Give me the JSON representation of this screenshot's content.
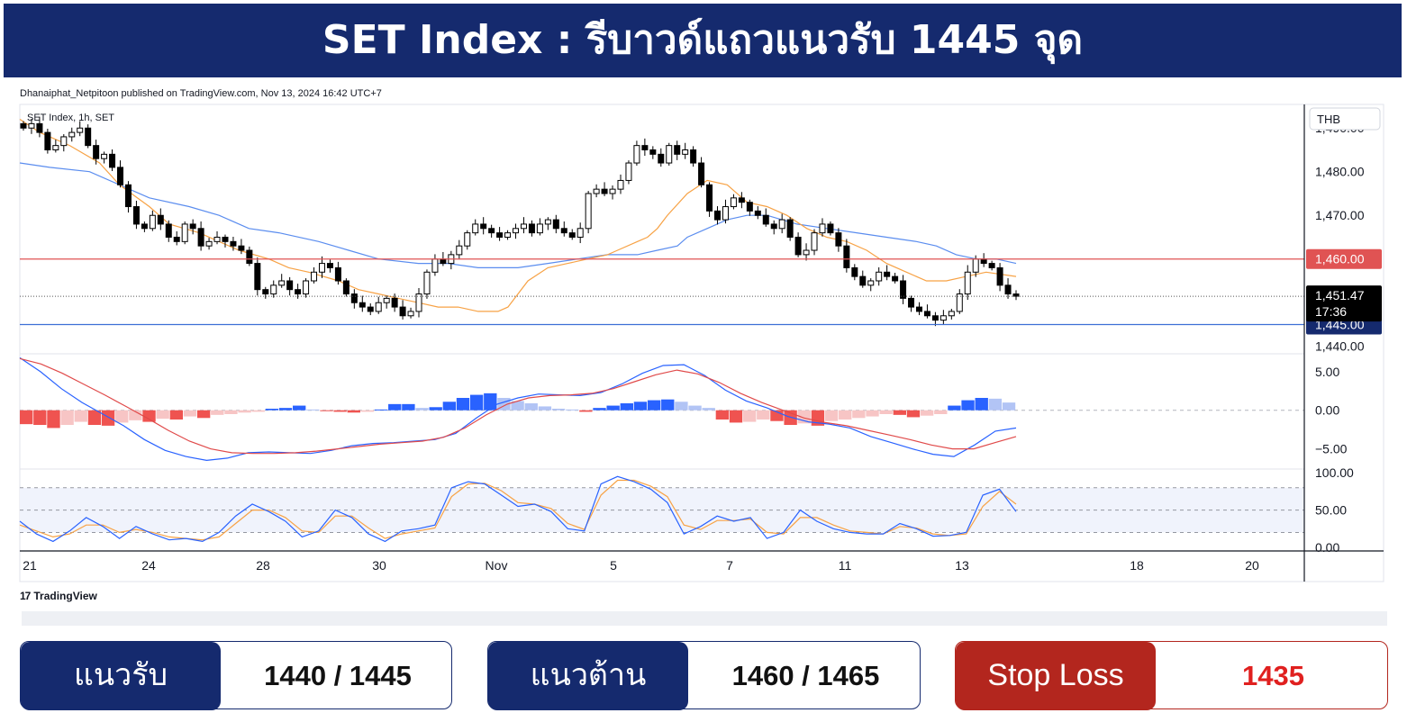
{
  "title": "SET Index : รีบาวด์แถวแนวรับ 1445 จุด",
  "publisher": "Dhanaiphat_Netpitoon published on TradingView.com, Nov 13, 2024 16:42 UTC+7",
  "symbol_label": "SET Index, 1h, SET",
  "currency": "THB",
  "brand": "TradingView",
  "levels": {
    "support_label": "แนวรับ",
    "support_value": "1440 / 1445",
    "resistance_label": "แนวต้าน",
    "resistance_value": "1460 / 1465",
    "stoploss_label": "Stop Loss",
    "stoploss_value": "1435"
  },
  "colors": {
    "navy": "#152a6e",
    "red": "#b3261e",
    "up": "#ffffff",
    "down": "#000000",
    "ma_fast": "#f7a245",
    "ma_slow": "#5b8def",
    "hline_res": "#e05353",
    "hline_sup": "#3d6fd6"
  },
  "chart_data": [
    {
      "type": "candlestick",
      "name": "SET Index, 1h, SET",
      "x_tick_labels": [
        "21",
        "24",
        "28",
        "30",
        "Nov",
        "5",
        "7",
        "11",
        "13",
        "18",
        "20"
      ],
      "y_ticks": [
        1490,
        1480,
        1470,
        1460,
        1450,
        1440
      ],
      "y_tick_labels": [
        "1,490.00",
        "1,480.00",
        "1,470.00",
        "1,460.00",
        "",
        "1,440.00"
      ],
      "ylim": [
        1438.5,
        1495
      ],
      "last_price": "1,451.47",
      "countdown": "17:36",
      "hlines": [
        {
          "value": 1460.0,
          "label": "1,460.00",
          "color": "#e05353"
        },
        {
          "value": 1445.0,
          "label": "1,445.00",
          "color": "#152a6e"
        }
      ],
      "close_path": [
        1490,
        1491,
        1489,
        1485,
        1486,
        1488,
        1489,
        1490,
        1486,
        1483,
        1484,
        1481,
        1477,
        1472,
        1468,
        1467,
        1470,
        1468,
        1465,
        1464,
        1468,
        1467,
        1463,
        1464,
        1465,
        1464,
        1463,
        1462,
        1459,
        1453,
        1452,
        1454,
        1455,
        1453,
        1452,
        1455,
        1457,
        1459,
        1458,
        1455,
        1452,
        1450,
        1449,
        1448,
        1450,
        1451,
        1449,
        1447,
        1448,
        1452,
        1457,
        1460,
        1459,
        1461,
        1463,
        1466,
        1468,
        1467,
        1466,
        1465,
        1466,
        1467,
        1468,
        1466,
        1468,
        1469,
        1467,
        1466,
        1465,
        1467,
        1475,
        1476,
        1475,
        1476,
        1478,
        1482,
        1486,
        1485,
        1484,
        1482,
        1486,
        1484,
        1485,
        1482,
        1477,
        1471,
        1469,
        1472,
        1474,
        1473,
        1471,
        1470,
        1468,
        1467,
        1469,
        1465,
        1461,
        1462,
        1466,
        1468,
        1466,
        1463,
        1458,
        1456,
        1454,
        1455,
        1457,
        1456,
        1455,
        1451,
        1449,
        1448,
        1447,
        1446,
        1447,
        1448,
        1452,
        1457,
        1460,
        1459,
        1458,
        1454,
        1452,
        1451.47
      ],
      "ma_fast": [
        1492,
        1489,
        1486,
        1482,
        1477,
        1472,
        1468,
        1466,
        1464,
        1462,
        1460,
        1458,
        1457,
        1455,
        1453,
        1452,
        1451,
        1450,
        1449,
        1449,
        1448,
        1448,
        1449,
        1455,
        1458,
        1459,
        1460,
        1461,
        1462,
        1464,
        1465,
        1467,
        1470,
        1475,
        1478,
        1477,
        1473,
        1472,
        1470,
        1467,
        1465,
        1464,
        1462,
        1459,
        1457,
        1455,
        1455,
        1456,
        1457,
        1456
      ],
      "ma_slow": [
        1482,
        1481,
        1480,
        1477,
        1474,
        1472,
        1470,
        1467,
        1466,
        1464,
        1462,
        1460,
        1459,
        1459,
        1458,
        1458,
        1459,
        1460,
        1461,
        1461,
        1462,
        1463,
        1465,
        1467,
        1469,
        1470,
        1470,
        1468,
        1467,
        1466,
        1465,
        1464,
        1463,
        1461,
        1460,
        1460,
        1459
      ],
      "ma_fast_x": [
        0,
        0.02,
        0.05,
        0.08,
        0.1,
        0.13,
        0.15,
        0.18,
        0.2,
        0.22,
        0.25,
        0.27,
        0.29,
        0.32,
        0.34,
        0.36,
        0.38,
        0.4,
        0.42,
        0.44,
        0.46,
        0.48,
        0.49,
        0.51,
        0.53,
        0.55,
        0.57,
        0.59,
        0.6,
        0.62,
        0.63,
        0.64,
        0.65,
        0.67,
        0.69,
        0.71,
        0.73,
        0.75,
        0.77,
        0.79,
        0.81,
        0.83,
        0.85,
        0.87,
        0.89,
        0.91,
        0.93,
        0.95,
        0.97,
        1
      ],
      "ma_slow_x": [
        0,
        0.03,
        0.07,
        0.1,
        0.13,
        0.17,
        0.2,
        0.23,
        0.26,
        0.3,
        0.33,
        0.36,
        0.4,
        0.43,
        0.46,
        0.5,
        0.53,
        0.56,
        0.59,
        0.62,
        0.64,
        0.66,
        0.67,
        0.69,
        0.71,
        0.73,
        0.75,
        0.78,
        0.81,
        0.84,
        0.87,
        0.9,
        0.92,
        0.94,
        0.96,
        0.98,
        1
      ]
    },
    {
      "type": "macd",
      "y_tick_labels": [
        "5.00",
        "0.00",
        "−5.00"
      ],
      "y_ticks": [
        5,
        0,
        -5
      ],
      "ylim": [
        -7.5,
        6.5
      ],
      "macd": [
        6.8,
        5,
        2.8,
        1,
        -0.5,
        -2,
        -3.8,
        -5.2,
        -6,
        -6.5,
        -6.2,
        -5.5,
        -5.4,
        -5.5,
        -5.6,
        -5.2,
        -4.6,
        -4.3,
        -4.2,
        -4,
        -3.8,
        -3,
        -1,
        0.8,
        1.6,
        2.1,
        2,
        1.9,
        2.3,
        3.4,
        4.8,
        5.8,
        5.9,
        4.5,
        2.6,
        1.2,
        0.3,
        -0.8,
        -1.5,
        -1.8,
        -2.3,
        -3.4,
        -4.2,
        -5,
        -5.7,
        -6,
        -4.5,
        -2.7,
        -2.3
      ],
      "signal": [
        6.7,
        6,
        4.8,
        3.4,
        2,
        0.5,
        -1,
        -2.6,
        -4,
        -5,
        -5.5,
        -5.6,
        -5.6,
        -5.5,
        -5.3,
        -5,
        -4.7,
        -4.4,
        -4.2,
        -4,
        -3.5,
        -2.3,
        -0.6,
        0.8,
        1.6,
        1.9,
        2,
        2.2,
        2.8,
        3.7,
        4.6,
        5.2,
        4.7,
        3.6,
        2.2,
        1,
        0,
        -1,
        -1.6,
        -2,
        -2.6,
        -3.2,
        -3.8,
        -4.5,
        -5,
        -5,
        -4.2,
        -3.4
      ],
      "histogram": [
        -1.8,
        -1.9,
        -2.3,
        -1.9,
        -1.5,
        -1.9,
        -2,
        -1.6,
        -1.3,
        -1.5,
        -1.1,
        -1.2,
        -0.8,
        -1,
        -0.6,
        -0.5,
        -0.3,
        -0.2,
        0.2,
        0.3,
        0.6,
        0.1,
        -0.1,
        -0.2,
        -0.3,
        -0.2,
        0.1,
        0.8,
        0.8,
        0.3,
        0.4,
        1.1,
        1.6,
        2,
        2.2,
        1.6,
        1.2,
        0.9,
        0.5,
        0.2,
        0.1,
        -0.2,
        0.3,
        0.6,
        0.9,
        1.1,
        1.3,
        1.4,
        1.1,
        0.6,
        0.3,
        -1.2,
        -1.6,
        -1.5,
        -1.2,
        -1.4,
        -1.9,
        -1.7,
        -2,
        -1.4,
        -1.2,
        -1,
        -0.8,
        -0.5,
        -0.6,
        -0.9,
        -0.7,
        -0.5,
        0.6,
        1.3,
        1.6,
        1.5,
        1
      ]
    },
    {
      "type": "stochastic",
      "y_tick_labels": [
        "100.00",
        "50.00",
        "0.00"
      ],
      "y_ticks": [
        100,
        50,
        0
      ],
      "ylim": [
        0,
        100
      ],
      "bands": [
        80,
        50,
        20
      ],
      "k": [
        35,
        18,
        8,
        22,
        40,
        28,
        12,
        28,
        18,
        10,
        12,
        8,
        20,
        42,
        58,
        48,
        35,
        14,
        22,
        50,
        40,
        18,
        8,
        22,
        25,
        30,
        80,
        88,
        85,
        70,
        55,
        58,
        48,
        25,
        22,
        85,
        95,
        88,
        78,
        60,
        18,
        28,
        42,
        35,
        40,
        12,
        20,
        50,
        35,
        25,
        20,
        18,
        18,
        32,
        25,
        15,
        16,
        20,
        70,
        78,
        48
      ],
      "d": [
        30,
        22,
        14,
        18,
        30,
        30,
        20,
        24,
        20,
        14,
        12,
        10,
        14,
        32,
        50,
        50,
        40,
        22,
        20,
        42,
        42,
        26,
        12,
        18,
        22,
        26,
        68,
        85,
        86,
        76,
        60,
        58,
        52,
        32,
        24,
        70,
        90,
        90,
        82,
        68,
        30,
        24,
        36,
        36,
        38,
        20,
        18,
        40,
        40,
        30,
        22,
        20,
        18,
        28,
        26,
        18,
        16,
        18,
        55,
        75,
        58
      ]
    }
  ]
}
